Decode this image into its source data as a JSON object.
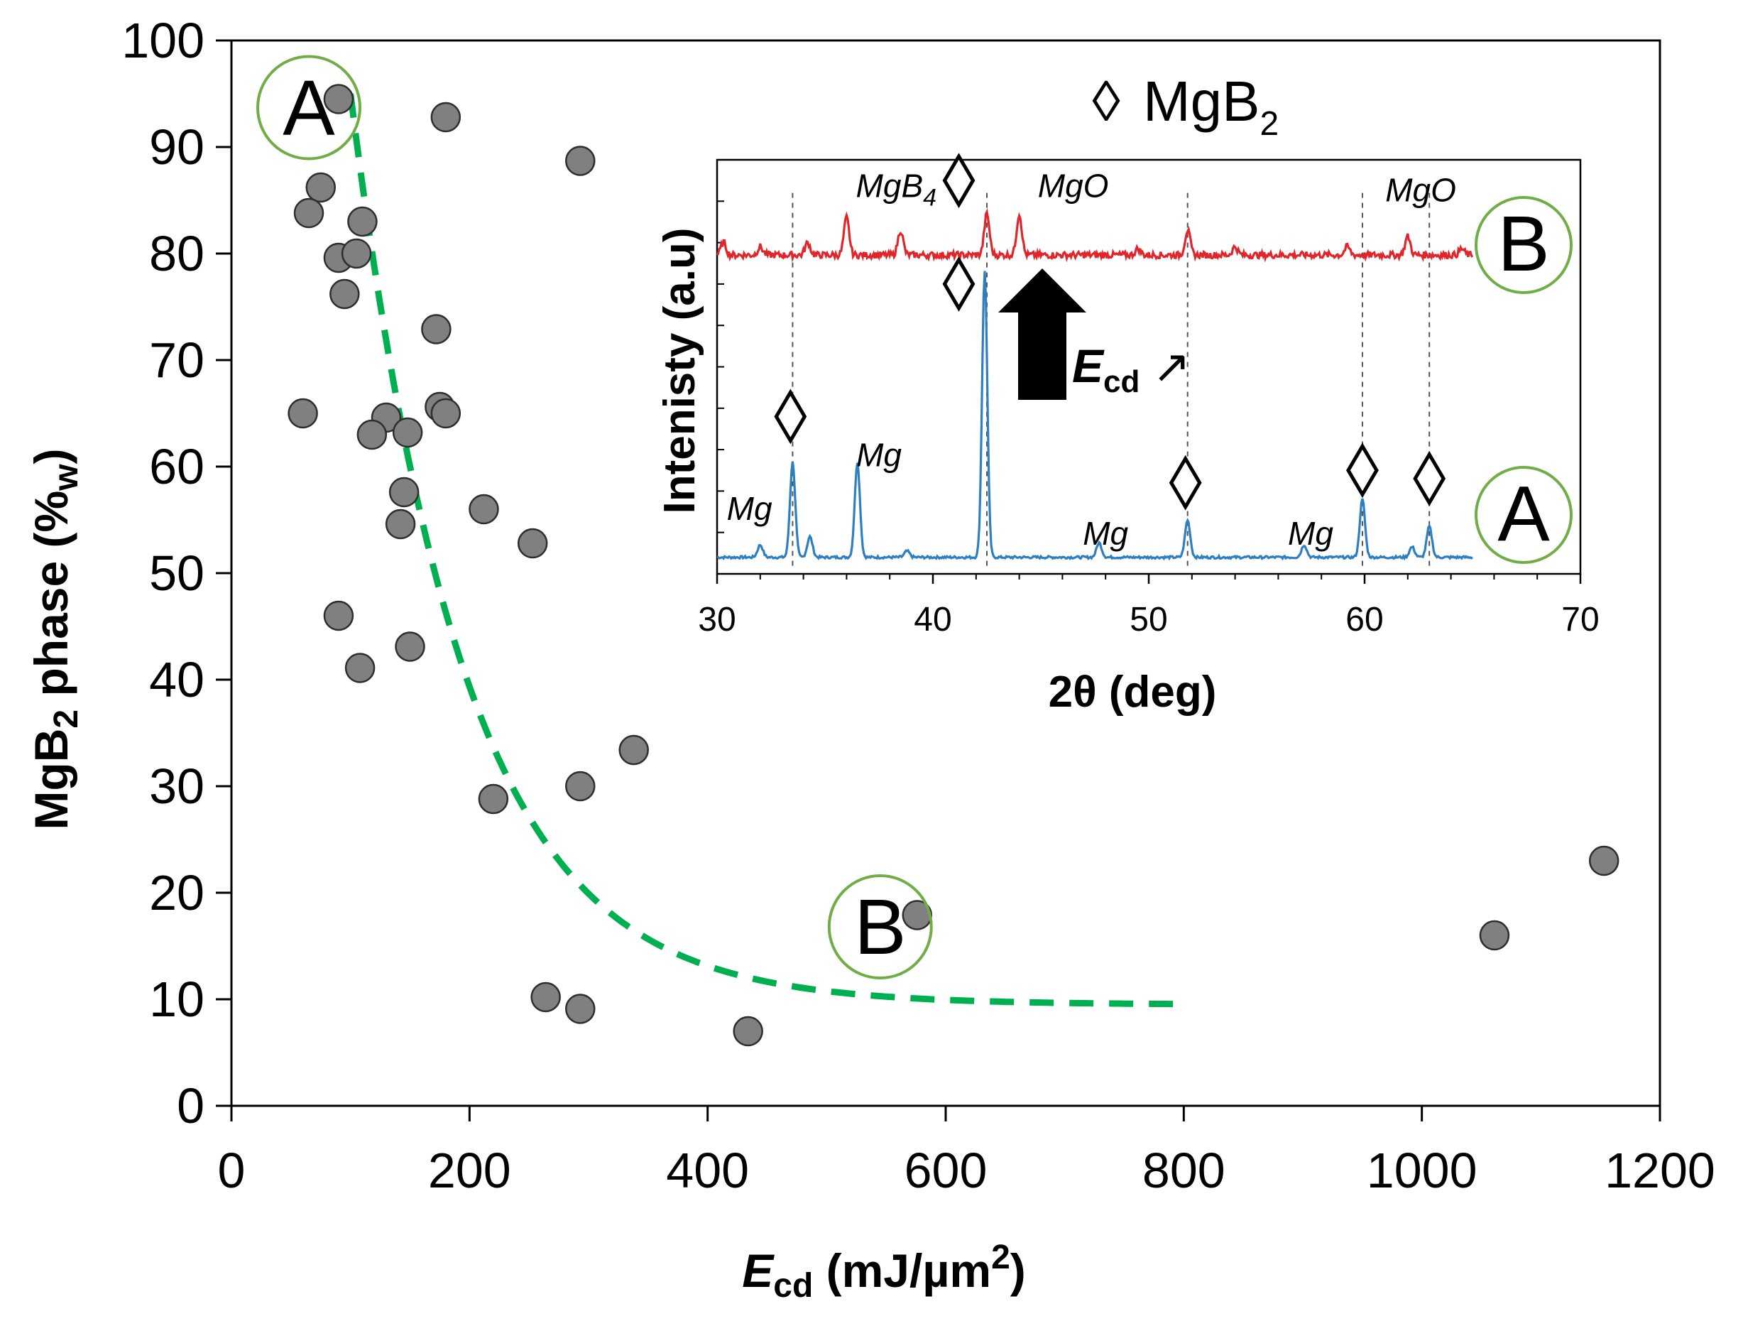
{
  "colors": {
    "points": "#808080",
    "point_edge": "#2e2e2e",
    "fit": "#00b050",
    "circle": "#70ad47",
    "xrd_A": "#2e7fc1",
    "xrd_B": "#e0262b"
  },
  "chart_data": [
    {
      "type": "scatter",
      "xlabel": "E",
      "xlabel_sub": "cd",
      "xlabel_units": " (mJ/µm",
      "xlabel_sup": "2",
      "xlabel_close": ")",
      "ylabel": "MgB",
      "ylabel_sub": "2",
      "ylabel_mid": " phase (%",
      "ylabel_sub2": "w",
      "ylabel_close": ")",
      "xlim": [
        0,
        1200
      ],
      "ylim": [
        0,
        100
      ],
      "xticks": [
        "0",
        "200",
        "400",
        "600",
        "800",
        "1000",
        "1200"
      ],
      "yticks": [
        "0",
        "10",
        "20",
        "30",
        "40",
        "50",
        "60",
        "70",
        "80",
        "90",
        "100"
      ],
      "points": [
        [
          90,
          94.5
        ],
        [
          180,
          92.8
        ],
        [
          293,
          88.7
        ],
        [
          75,
          86.2
        ],
        [
          65,
          83.8
        ],
        [
          110,
          83.0
        ],
        [
          90,
          79.6
        ],
        [
          105,
          80.0
        ],
        [
          95,
          76.2
        ],
        [
          172,
          72.9
        ],
        [
          60,
          65.0
        ],
        [
          175,
          65.6
        ],
        [
          180,
          65.0
        ],
        [
          130,
          64.6
        ],
        [
          148,
          63.2
        ],
        [
          118,
          63.0
        ],
        [
          145,
          57.6
        ],
        [
          142,
          54.6
        ],
        [
          212,
          56.0
        ],
        [
          253,
          52.8
        ],
        [
          90,
          46.0
        ],
        [
          150,
          43.1
        ],
        [
          108,
          41.1
        ],
        [
          338,
          33.4
        ],
        [
          293,
          30.0
        ],
        [
          220,
          28.8
        ],
        [
          576,
          17.9
        ],
        [
          1153,
          23.0
        ],
        [
          1061,
          16.0
        ],
        [
          264,
          10.2
        ],
        [
          293,
          9.1
        ],
        [
          434,
          7.0
        ]
      ],
      "fit": {
        "type": "exponential-decay",
        "y0": 9.5,
        "amplitude": 85.5,
        "x_start": 100,
        "decay_length": 95,
        "x_range": [
          100,
          795
        ]
      },
      "annotations": [
        {
          "label": "A",
          "x": 65,
          "y": 93.7
        },
        {
          "label": "B",
          "x": 545,
          "y": 16.8
        }
      ]
    },
    {
      "type": "line",
      "inset": true,
      "xlabel": "2θ (deg)",
      "ylabel": "Intenisty (a.u)",
      "xlim": [
        30,
        70
      ],
      "ylim": [
        0,
        100
      ],
      "xticks": [
        "30",
        "40",
        "50",
        "60",
        "70"
      ],
      "legend": {
        "symbol": "◊",
        "label": "MgB",
        "sub": "2"
      },
      "series": [
        {
          "name": "A",
          "baseline": 4,
          "x_range": [
            30,
            65
          ],
          "peaks": [
            [
              32.0,
              3.0
            ],
            [
              33.5,
              23.0
            ],
            [
              34.3,
              5.0
            ],
            [
              36.5,
              23.0
            ],
            [
              38.8,
              1.5
            ],
            [
              42.4,
              69.0
            ],
            [
              47.7,
              3.5
            ],
            [
              51.8,
              9.0
            ],
            [
              57.2,
              3.0
            ],
            [
              59.9,
              14.0
            ],
            [
              62.2,
              2.5
            ],
            [
              63.0,
              7.5
            ]
          ]
        },
        {
          "name": "B",
          "baseline": 77,
          "x_range": [
            30,
            65
          ],
          "peaks": [
            [
              30.3,
              3.0
            ],
            [
              32.0,
              2.0
            ],
            [
              34.2,
              3.0
            ],
            [
              36.0,
              9.0
            ],
            [
              38.5,
              6.0
            ],
            [
              42.5,
              10.0
            ],
            [
              44.0,
              10.0
            ],
            [
              49.5,
              1.5
            ],
            [
              51.8,
              6.0
            ],
            [
              54.0,
              2.0
            ],
            [
              59.2,
              2.0
            ],
            [
              62.0,
              4.5
            ],
            [
              64.5,
              1.5
            ]
          ]
        }
      ],
      "dashed_lines_at": [
        33.5,
        42.5,
        51.8,
        59.9,
        63.0
      ],
      "peak_labels": [
        {
          "text": "Mg",
          "x": 31.5,
          "y": 13
        },
        {
          "text": "Mg",
          "x": 37.5,
          "y": 26
        },
        {
          "text": "Mg",
          "x": 48.0,
          "y": 7
        },
        {
          "text": "Mg",
          "x": 57.5,
          "y": 7
        },
        {
          "text": "MgB",
          "sub": "4",
          "x": 38.3,
          "y": 91
        },
        {
          "text": "MgO",
          "x": 46.5,
          "y": 91
        },
        {
          "text": "MgO",
          "x": 62.6,
          "y": 90
        }
      ],
      "diamonds": [
        {
          "x": 33.4,
          "y": 38,
          "size": "large"
        },
        {
          "x": 41.2,
          "y": 70,
          "size": "large"
        },
        {
          "x": 41.2,
          "y": 95,
          "size": "large"
        },
        {
          "x": 51.7,
          "y": 22,
          "size": "large"
        },
        {
          "x": 59.9,
          "y": 25,
          "size": "large"
        },
        {
          "x": 63.0,
          "y": 23,
          "size": "large"
        }
      ],
      "circles": [
        {
          "label": "A",
          "position": "lower-right"
        },
        {
          "label": "B",
          "position": "upper-right"
        }
      ],
      "arrow_label": "E",
      "arrow_label_sub": "cd",
      "arrow_symbol": "↗"
    }
  ]
}
